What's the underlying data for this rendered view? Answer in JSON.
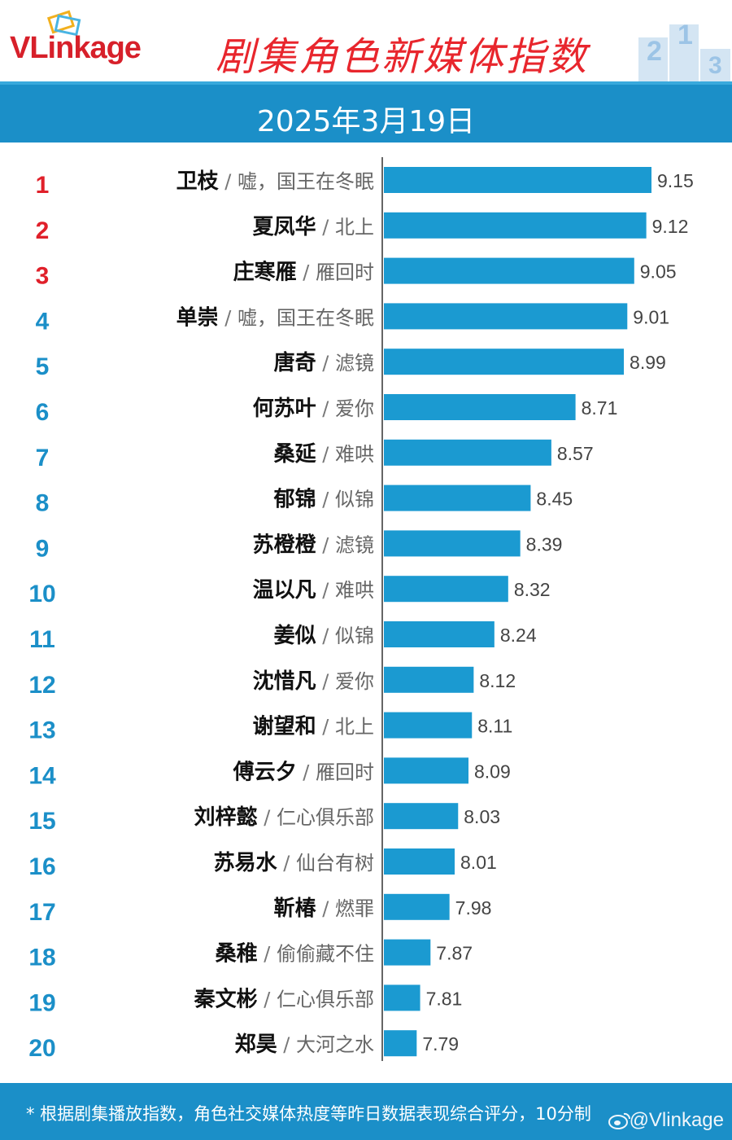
{
  "header": {
    "logo": "VLinkage",
    "title": "剧集角色新媒体指数",
    "podium_digits": [
      "2",
      "1",
      "3"
    ]
  },
  "date": "2025年3月19日",
  "colors": {
    "bar": "#1b9ad1",
    "rank_top3": "#e0202a",
    "rank_rest": "#1b8fc8",
    "band": "#1b8fc8"
  },
  "chart_data": {
    "type": "bar",
    "orientation": "horizontal",
    "categories": [
      {
        "rank": "1",
        "name": "卫枝",
        "drama": "嘘，国王在冬眠"
      },
      {
        "rank": "2",
        "name": "夏凤华",
        "drama": "北上"
      },
      {
        "rank": "3",
        "name": "庄寒雁",
        "drama": "雁回时"
      },
      {
        "rank": "4",
        "name": "单崇",
        "drama": "嘘，国王在冬眠"
      },
      {
        "rank": "5",
        "name": "唐奇",
        "drama": "滤镜"
      },
      {
        "rank": "6",
        "name": "何苏叶",
        "drama": "爱你"
      },
      {
        "rank": "7",
        "name": "桑延",
        "drama": "难哄"
      },
      {
        "rank": "8",
        "name": "郁锦",
        "drama": "似锦"
      },
      {
        "rank": "9",
        "name": "苏橙橙",
        "drama": "滤镜"
      },
      {
        "rank": "10",
        "name": "温以凡",
        "drama": "难哄"
      },
      {
        "rank": "11",
        "name": "姜似",
        "drama": "似锦"
      },
      {
        "rank": "12",
        "name": "沈惜凡",
        "drama": "爱你"
      },
      {
        "rank": "13",
        "name": "谢望和",
        "drama": "北上"
      },
      {
        "rank": "14",
        "name": "傅云夕",
        "drama": "雁回时"
      },
      {
        "rank": "15",
        "name": "刘梓懿",
        "drama": "仁心俱乐部"
      },
      {
        "rank": "16",
        "name": "苏易水",
        "drama": "仙台有树"
      },
      {
        "rank": "17",
        "name": "靳椿",
        "drama": "燃罪"
      },
      {
        "rank": "18",
        "name": "桑稚",
        "drama": "偷偷藏不住"
      },
      {
        "rank": "19",
        "name": "秦文彬",
        "drama": "仁心俱乐部"
      },
      {
        "rank": "20",
        "name": "郑昊",
        "drama": "大河之水"
      }
    ],
    "values": [
      9.15,
      9.12,
      9.05,
      9.01,
      8.99,
      8.71,
      8.57,
      8.45,
      8.39,
      8.32,
      8.24,
      8.12,
      8.11,
      8.09,
      8.03,
      8.01,
      7.98,
      7.87,
      7.81,
      7.79
    ],
    "value_labels": [
      "9.15",
      "9.12",
      "9.05",
      "9.01",
      "8.99",
      "8.71",
      "8.57",
      "8.45",
      "8.39",
      "8.32",
      "8.24",
      "8.12",
      "8.11",
      "8.09",
      "8.03",
      "8.01",
      "7.98",
      "7.87",
      "7.81",
      "7.79"
    ],
    "xlim": [
      7.6,
      9.15
    ],
    "grid": false,
    "legend": "none"
  },
  "footer": {
    "note": "* 根据剧集播放指数，角色社交媒体热度等昨日数据表现综合评分，10分制",
    "brand": "@Vlinkage"
  }
}
